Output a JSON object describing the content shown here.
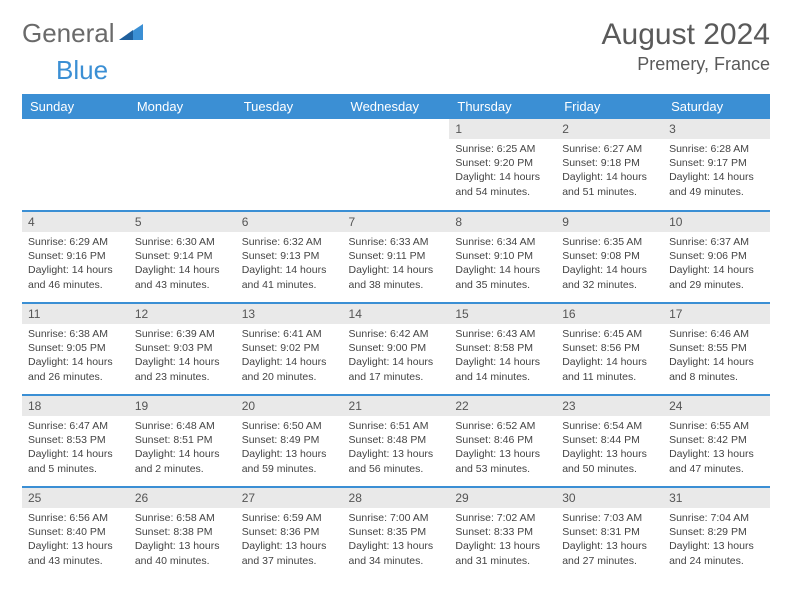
{
  "logo": {
    "text1": "General",
    "text2": "Blue"
  },
  "title": "August 2024",
  "location": "Premery, France",
  "weekdays": [
    "Sunday",
    "Monday",
    "Tuesday",
    "Wednesday",
    "Thursday",
    "Friday",
    "Saturday"
  ],
  "colors": {
    "header_bg": "#3b8fd4",
    "header_text": "#ffffff",
    "daynum_bg": "#e9e9e9",
    "row_divider": "#3b8fd4",
    "text": "#444444"
  },
  "layout": {
    "rows": 5,
    "cols": 7,
    "first_weekday_index": 4,
    "days_in_month": 31
  },
  "days": [
    {
      "n": 1,
      "sunrise": "6:25 AM",
      "sunset": "9:20 PM",
      "daylight": "14 hours and 54 minutes."
    },
    {
      "n": 2,
      "sunrise": "6:27 AM",
      "sunset": "9:18 PM",
      "daylight": "14 hours and 51 minutes."
    },
    {
      "n": 3,
      "sunrise": "6:28 AM",
      "sunset": "9:17 PM",
      "daylight": "14 hours and 49 minutes."
    },
    {
      "n": 4,
      "sunrise": "6:29 AM",
      "sunset": "9:16 PM",
      "daylight": "14 hours and 46 minutes."
    },
    {
      "n": 5,
      "sunrise": "6:30 AM",
      "sunset": "9:14 PM",
      "daylight": "14 hours and 43 minutes."
    },
    {
      "n": 6,
      "sunrise": "6:32 AM",
      "sunset": "9:13 PM",
      "daylight": "14 hours and 41 minutes."
    },
    {
      "n": 7,
      "sunrise": "6:33 AM",
      "sunset": "9:11 PM",
      "daylight": "14 hours and 38 minutes."
    },
    {
      "n": 8,
      "sunrise": "6:34 AM",
      "sunset": "9:10 PM",
      "daylight": "14 hours and 35 minutes."
    },
    {
      "n": 9,
      "sunrise": "6:35 AM",
      "sunset": "9:08 PM",
      "daylight": "14 hours and 32 minutes."
    },
    {
      "n": 10,
      "sunrise": "6:37 AM",
      "sunset": "9:06 PM",
      "daylight": "14 hours and 29 minutes."
    },
    {
      "n": 11,
      "sunrise": "6:38 AM",
      "sunset": "9:05 PM",
      "daylight": "14 hours and 26 minutes."
    },
    {
      "n": 12,
      "sunrise": "6:39 AM",
      "sunset": "9:03 PM",
      "daylight": "14 hours and 23 minutes."
    },
    {
      "n": 13,
      "sunrise": "6:41 AM",
      "sunset": "9:02 PM",
      "daylight": "14 hours and 20 minutes."
    },
    {
      "n": 14,
      "sunrise": "6:42 AM",
      "sunset": "9:00 PM",
      "daylight": "14 hours and 17 minutes."
    },
    {
      "n": 15,
      "sunrise": "6:43 AM",
      "sunset": "8:58 PM",
      "daylight": "14 hours and 14 minutes."
    },
    {
      "n": 16,
      "sunrise": "6:45 AM",
      "sunset": "8:56 PM",
      "daylight": "14 hours and 11 minutes."
    },
    {
      "n": 17,
      "sunrise": "6:46 AM",
      "sunset": "8:55 PM",
      "daylight": "14 hours and 8 minutes."
    },
    {
      "n": 18,
      "sunrise": "6:47 AM",
      "sunset": "8:53 PM",
      "daylight": "14 hours and 5 minutes."
    },
    {
      "n": 19,
      "sunrise": "6:48 AM",
      "sunset": "8:51 PM",
      "daylight": "14 hours and 2 minutes."
    },
    {
      "n": 20,
      "sunrise": "6:50 AM",
      "sunset": "8:49 PM",
      "daylight": "13 hours and 59 minutes."
    },
    {
      "n": 21,
      "sunrise": "6:51 AM",
      "sunset": "8:48 PM",
      "daylight": "13 hours and 56 minutes."
    },
    {
      "n": 22,
      "sunrise": "6:52 AM",
      "sunset": "8:46 PM",
      "daylight": "13 hours and 53 minutes."
    },
    {
      "n": 23,
      "sunrise": "6:54 AM",
      "sunset": "8:44 PM",
      "daylight": "13 hours and 50 minutes."
    },
    {
      "n": 24,
      "sunrise": "6:55 AM",
      "sunset": "8:42 PM",
      "daylight": "13 hours and 47 minutes."
    },
    {
      "n": 25,
      "sunrise": "6:56 AM",
      "sunset": "8:40 PM",
      "daylight": "13 hours and 43 minutes."
    },
    {
      "n": 26,
      "sunrise": "6:58 AM",
      "sunset": "8:38 PM",
      "daylight": "13 hours and 40 minutes."
    },
    {
      "n": 27,
      "sunrise": "6:59 AM",
      "sunset": "8:36 PM",
      "daylight": "13 hours and 37 minutes."
    },
    {
      "n": 28,
      "sunrise": "7:00 AM",
      "sunset": "8:35 PM",
      "daylight": "13 hours and 34 minutes."
    },
    {
      "n": 29,
      "sunrise": "7:02 AM",
      "sunset": "8:33 PM",
      "daylight": "13 hours and 31 minutes."
    },
    {
      "n": 30,
      "sunrise": "7:03 AM",
      "sunset": "8:31 PM",
      "daylight": "13 hours and 27 minutes."
    },
    {
      "n": 31,
      "sunrise": "7:04 AM",
      "sunset": "8:29 PM",
      "daylight": "13 hours and 24 minutes."
    }
  ],
  "labels": {
    "sunrise": "Sunrise: ",
    "sunset": "Sunset: ",
    "daylight": "Daylight: "
  }
}
